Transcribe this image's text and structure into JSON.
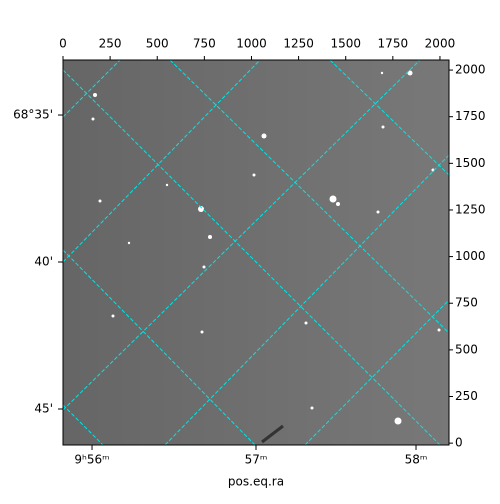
{
  "chart_data": {
    "type": "image",
    "xlabel": "pos.eq.ra",
    "xlim": [
      0,
      2048
    ],
    "ylim": [
      -10,
      2054
    ],
    "xticks": [
      0,
      250,
      500,
      750,
      1000,
      1250,
      1500,
      1750,
      2000
    ],
    "yticks": [
      0,
      250,
      500,
      750,
      1000,
      1250,
      1500,
      1750,
      2000
    ],
    "ra_ticks": [
      {
        "value": 154,
        "label": "9ʰ56ᵐ"
      },
      {
        "value": 1024,
        "label": "57ᵐ"
      },
      {
        "value": 1873,
        "label": "58ᵐ"
      }
    ],
    "dec_ticks": [
      {
        "value": 1759,
        "label": "68°35'"
      },
      {
        "value": 971,
        "label": "40'"
      },
      {
        "value": 183,
        "label": "45'"
      }
    ]
  }
}
